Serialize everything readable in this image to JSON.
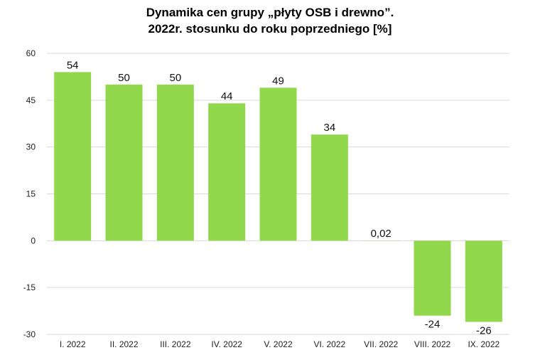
{
  "chart_data": {
    "type": "bar",
    "title": "Dynamika cen grupy „płyty OSB i drewno”.",
    "subtitle": "2022r. stosunku do roku poprzedniego [%]",
    "categories": [
      "I. 2022",
      "II. 2022",
      "III. 2022",
      "IV. 2022",
      "V. 2022",
      "VI. 2022",
      "VII. 2022",
      "VIII. 2022",
      "IX. 2022"
    ],
    "values": [
      54,
      50,
      50,
      44,
      49,
      34,
      0.02,
      -24,
      -26
    ],
    "value_labels": [
      "54",
      "50",
      "50",
      "44",
      "49",
      "34",
      "0,02",
      "-24",
      "-26"
    ],
    "ylim": [
      -30,
      60
    ],
    "yticks": [
      60,
      45,
      30,
      15,
      0,
      -15,
      -30
    ],
    "grid": true,
    "bar_color": "#92d84d",
    "grid_color": "#d9d9d9"
  }
}
